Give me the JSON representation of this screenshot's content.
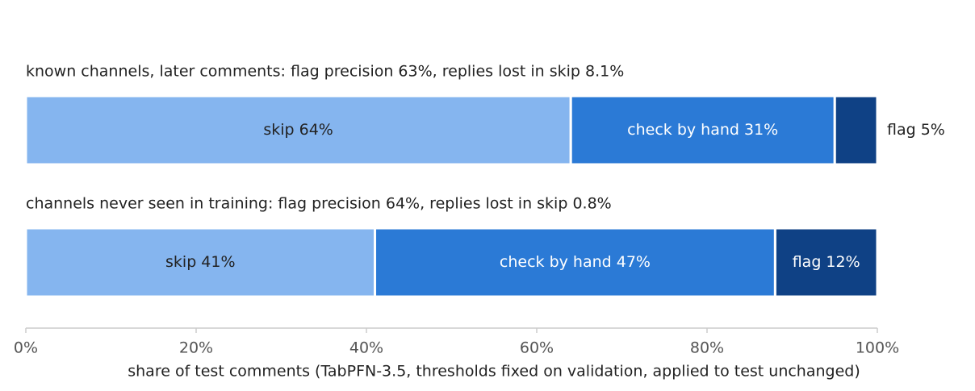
{
  "chart_data": {
    "type": "bar",
    "orientation": "horizontal",
    "stacked": true,
    "categories": [
      "known channels, later comments: flag precision 63%, replies lost in skip 8.1%",
      "channels never seen in training: flag precision 64%, replies lost in skip 0.8%"
    ],
    "series": [
      {
        "name": "skip",
        "color": "#85b5ef",
        "label_color": "#222222",
        "values": [
          64,
          41
        ],
        "value_labels": [
          "skip 64%",
          "skip 41%"
        ]
      },
      {
        "name": "check by hand",
        "color": "#2b7ad6",
        "label_color": "#ffffff",
        "values": [
          31,
          47
        ],
        "value_labels": [
          "check by hand 31%",
          "check by hand 47%"
        ]
      },
      {
        "name": "flag",
        "color": "#0f4185",
        "label_color": "#ffffff",
        "values": [
          5,
          12
        ],
        "value_labels": [
          "flag 5%",
          "flag 12%"
        ]
      }
    ],
    "xlim": [
      0,
      100
    ],
    "xticks": [
      {
        "value": 0,
        "label": "0%"
      },
      {
        "value": 20,
        "label": "20%"
      },
      {
        "value": 40,
        "label": "40%"
      },
      {
        "value": 60,
        "label": "60%"
      },
      {
        "value": 80,
        "label": "80%"
      },
      {
        "value": 100,
        "label": "100%"
      }
    ],
    "xlabel": "share of test comments (TabPFN-3.5, thresholds fixed on validation, applied to test unchanged)"
  }
}
